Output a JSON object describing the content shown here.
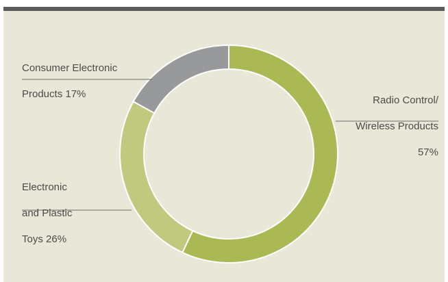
{
  "chart_data": {
    "type": "pie",
    "variant": "donut",
    "categories": [
      "Radio Control/\nWireless Products 57%",
      "Electronic\nand Plastic\nToys 26%",
      "Consumer Electronic\nProducts 17%"
    ],
    "values": [
      57,
      26,
      17
    ],
    "colors": [
      "#aab954",
      "#c0c97e",
      "#98999b"
    ],
    "start_angle_deg": 0,
    "direction": "clockwise"
  },
  "labels": {
    "radio_line1": "Radio Control/",
    "radio_line2": "Wireless Products",
    "radio_line3": "57%",
    "toys_line1": "Electronic",
    "toys_line2": "and Plastic",
    "toys_line3": "Toys 26%",
    "consumer_line1": "Consumer Electronic",
    "consumer_line2": "Products 17%"
  },
  "colors": {
    "background": "#e9e8d8",
    "header_rule": "#585a5c",
    "leader_line": "#6a6a6a",
    "text": "#4a4a4a"
  }
}
